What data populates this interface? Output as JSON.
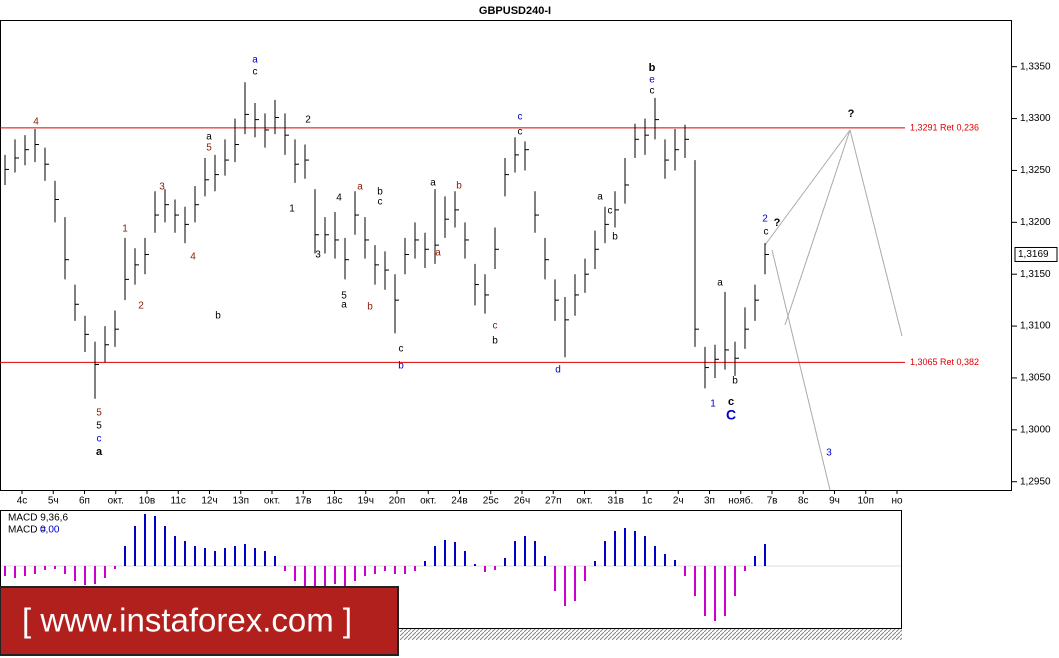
{
  "chart_data": {
    "type": "ohlc",
    "title": "GBPUSD240-I",
    "ylim": [
      1.2942,
      1.3395
    ],
    "yticks": [
      {
        "value": 1.295,
        "label": "1,2950"
      },
      {
        "value": 1.3,
        "label": "1,3000"
      },
      {
        "value": 1.305,
        "label": "1,3050"
      },
      {
        "value": 1.31,
        "label": "1,3100"
      },
      {
        "value": 1.315,
        "label": "1,3150"
      },
      {
        "value": 1.32,
        "label": "1,3200"
      },
      {
        "value": 1.325,
        "label": "1,3250"
      },
      {
        "value": 1.33,
        "label": "1,3300"
      },
      {
        "value": 1.335,
        "label": "1,3350"
      }
    ],
    "x_labels": [
      "4c",
      "5ч",
      "6п",
      "окт.",
      "10в",
      "11c",
      "12ч",
      "13п",
      "окт.",
      "17в",
      "18c",
      "19ч",
      "20п",
      "окт.",
      "24в",
      "25c",
      "26ч",
      "27п",
      "окт.",
      "31в",
      "1c",
      "2ч",
      "3п",
      "нояб.",
      "7в",
      "8c",
      "9ч",
      "10п",
      "но"
    ],
    "color": "#000000",
    "close": [
      1.3251,
      1.3262,
      1.327,
      1.3275,
      1.3256,
      1.3222,
      1.3164,
      1.3121,
      1.3092,
      1.3063,
      1.3082,
      1.3097,
      1.3145,
      1.3159,
      1.3169,
      1.3207,
      1.3217,
      1.3207,
      1.3198,
      1.3217,
      1.3241,
      1.3246,
      1.326,
      1.3275,
      1.3304,
      1.3299,
      1.3289,
      1.3301,
      1.3284,
      1.3256,
      1.326,
      1.3188,
      1.3188,
      1.3183,
      1.3164,
      1.3207,
      1.3183,
      1.3159,
      1.3154,
      1.3125,
      1.3169,
      1.3183,
      1.3174,
      1.3178,
      1.3203,
      1.3212,
      1.3183,
      1.314,
      1.313,
      1.3174,
      1.3246,
      1.3265,
      1.327,
      1.3207,
      1.3164,
      1.3125,
      1.3106,
      1.313,
      1.315,
      1.3174,
      1.3198,
      1.3212,
      1.3236,
      1.328,
      1.3284,
      1.3299,
      1.326,
      1.327,
      1.328,
      1.3097,
      1.306,
      1.3068,
      1.3077,
      1.3069,
      1.3097,
      1.3125,
      1.3169
    ],
    "high": [
      1.3265,
      1.328,
      1.3284,
      1.329,
      1.3272,
      1.324,
      1.3205,
      1.314,
      1.311,
      1.3085,
      1.31,
      1.3115,
      1.3185,
      1.3175,
      1.3185,
      1.323,
      1.3232,
      1.3222,
      1.3215,
      1.3235,
      1.3262,
      1.3265,
      1.328,
      1.33,
      1.3335,
      1.3315,
      1.3305,
      1.3318,
      1.3305,
      1.328,
      1.3275,
      1.3232,
      1.3205,
      1.321,
      1.3185,
      1.323,
      1.3205,
      1.3178,
      1.3172,
      1.315,
      1.3185,
      1.32,
      1.319,
      1.3232,
      1.3225,
      1.323,
      1.32,
      1.316,
      1.315,
      1.3195,
      1.3262,
      1.3282,
      1.3278,
      1.323,
      1.3185,
      1.3145,
      1.3128,
      1.315,
      1.3165,
      1.3192,
      1.3215,
      1.323,
      1.3262,
      1.3295,
      1.33,
      1.332,
      1.328,
      1.329,
      1.3294,
      1.326,
      1.308,
      1.3082,
      1.3133,
      1.3085,
      1.3118,
      1.314,
      1.318
    ],
    "low": [
      1.3236,
      1.3248,
      1.3255,
      1.3258,
      1.324,
      1.32,
      1.3145,
      1.3105,
      1.3075,
      1.303,
      1.3065,
      1.308,
      1.3125,
      1.314,
      1.315,
      1.319,
      1.32,
      1.319,
      1.318,
      1.32,
      1.3225,
      1.323,
      1.3245,
      1.3258,
      1.3285,
      1.3282,
      1.3272,
      1.3285,
      1.3265,
      1.3238,
      1.3242,
      1.317,
      1.317,
      1.3165,
      1.3145,
      1.3188,
      1.3165,
      1.314,
      1.3135,
      1.3093,
      1.315,
      1.3165,
      1.3156,
      1.316,
      1.3185,
      1.3195,
      1.3165,
      1.312,
      1.3112,
      1.3155,
      1.3225,
      1.3248,
      1.325,
      1.319,
      1.3145,
      1.3105,
      1.307,
      1.311,
      1.3132,
      1.3155,
      1.318,
      1.3195,
      1.3218,
      1.3262,
      1.3265,
      1.328,
      1.3242,
      1.325,
      1.3262,
      1.308,
      1.304,
      1.305,
      1.3058,
      1.3052,
      1.3078,
      1.3105,
      1.315
    ],
    "levels": [
      {
        "value": 1.3291,
        "label": "1,3291 Ret 0,236"
      },
      {
        "value": 1.3065,
        "label": "1,3065 Ret 0,382"
      }
    ],
    "level_color": "#e00000",
    "last_price": {
      "value": 1.3169,
      "label": "1,3169"
    },
    "annotations": [
      {
        "text": "4",
        "color": "#8b1a00"
      },
      {
        "text": "5",
        "color": "#8b1a00"
      },
      {
        "text": "5",
        "color": "#000000"
      },
      {
        "text": "c",
        "color": "#0000cc"
      },
      {
        "text": "a",
        "color": "#000000"
      },
      {
        "text": "1",
        "color": "#8b1a00"
      },
      {
        "text": "2",
        "color": "#8b1a00"
      },
      {
        "text": "3",
        "color": "#8b1a00"
      },
      {
        "text": "4",
        "color": "#8b1a00"
      },
      {
        "text": "a",
        "color": "#000000"
      },
      {
        "text": "5",
        "color": "#8b1a00"
      },
      {
        "text": "b",
        "color": "#000000"
      },
      {
        "text": "a",
        "color": "#0000cc"
      },
      {
        "text": "c",
        "color": "#000000"
      },
      {
        "text": "2",
        "color": "#000000"
      },
      {
        "text": "1",
        "color": "#000000"
      },
      {
        "text": "3",
        "color": "#000000"
      },
      {
        "text": "4",
        "color": "#000000"
      },
      {
        "text": "a",
        "color": "#8b1a00"
      },
      {
        "text": "5",
        "color": "#000000"
      },
      {
        "text": "a",
        "color": "#000000"
      },
      {
        "text": "b",
        "color": "#000000"
      },
      {
        "text": "c",
        "color": "#000000"
      },
      {
        "text": "b",
        "color": "#8b1a00"
      },
      {
        "text": "c",
        "color": "#000000"
      },
      {
        "text": "b",
        "color": "#0000cc"
      },
      {
        "text": "a",
        "color": "#000000"
      },
      {
        "text": "a",
        "color": "#8b1a00"
      },
      {
        "text": "b",
        "color": "#8b1a00"
      },
      {
        "text": "c",
        "color": "#8b1a00"
      },
      {
        "text": "b",
        "color": "#000000"
      },
      {
        "text": "c",
        "color": "#0000cc"
      },
      {
        "text": "c",
        "color": "#000000"
      },
      {
        "text": "d",
        "color": "#0000cc"
      },
      {
        "text": "a",
        "color": "#000000"
      },
      {
        "text": "c",
        "color": "#000000"
      },
      {
        "text": "b",
        "color": "#000000"
      },
      {
        "text": "b",
        "color": "#000000"
      },
      {
        "text": "e",
        "color": "#0000cc"
      },
      {
        "text": "c",
        "color": "#000000"
      },
      {
        "text": "a",
        "color": "#000000"
      },
      {
        "text": "b",
        "color": "#000000"
      },
      {
        "text": "1",
        "color": "#0000cc"
      },
      {
        "text": "c",
        "color": "#000000"
      },
      {
        "text": "C",
        "color": "#0000cc"
      },
      {
        "text": "2",
        "color": "#0000cc"
      },
      {
        "text": "c",
        "color": "#000000"
      },
      {
        "text": "?",
        "color": "#000000"
      },
      {
        "text": "?",
        "color": "#000000"
      },
      {
        "text": "3",
        "color": "#0000cc"
      }
    ],
    "macd_title": "MACD 9,36,6",
    "macd_value_label": "MACD =",
    "macd_value": "0,00",
    "macd_colors": {
      "positive": "#0000cc",
      "negative": "#cc00cc"
    },
    "macd": [
      -1.0,
      -1.2,
      -1.0,
      -0.8,
      -0.4,
      -0.3,
      -0.8,
      -1.5,
      -1.9,
      -1.8,
      -1.2,
      -0.3,
      2.0,
      4.0,
      5.2,
      5.0,
      4.0,
      3.0,
      2.5,
      2.0,
      1.8,
      1.5,
      1.8,
      2.0,
      2.2,
      1.8,
      1.5,
      1.0,
      -0.5,
      -1.5,
      -2.0,
      -2.0,
      -2.0,
      -1.8,
      -2.0,
      -1.5,
      -1.0,
      -0.8,
      -0.5,
      -0.8,
      -0.8,
      -0.5,
      0.5,
      2.0,
      2.6,
      2.4,
      1.5,
      0.2,
      -0.6,
      -0.4,
      0.8,
      2.5,
      3.0,
      2.5,
      1.0,
      -2.5,
      -4.0,
      -3.5,
      -1.5,
      0.5,
      2.5,
      3.5,
      3.8,
      3.5,
      3.0,
      2.0,
      1.2,
      0.6,
      -1.0,
      -3.0,
      -5.0,
      -5.5,
      -5.0,
      -3.0,
      -0.5,
      1.0,
      2.2
    ],
    "watermark": "[  www.instaforex.com ]"
  }
}
